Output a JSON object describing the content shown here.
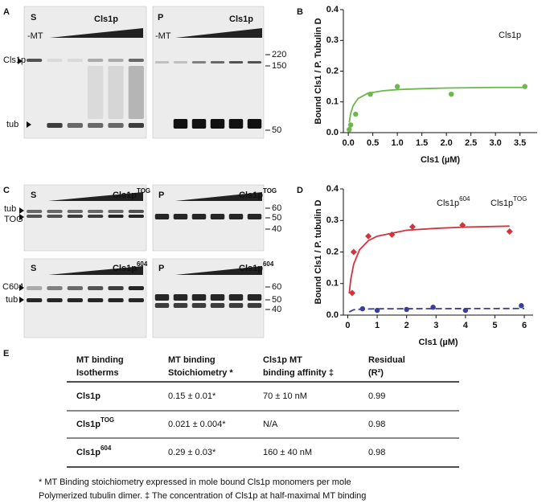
{
  "panel_labels": [
    "A",
    "B",
    "C",
    "D",
    "E"
  ],
  "panel_A": {
    "gels": [
      {
        "label": "S",
        "title": "Cls1p",
        "lane_label": "-MT"
      },
      {
        "label": "P",
        "title": "Cls1p",
        "lane_label": "-MT"
      }
    ],
    "left_labels": [
      "Cls1p",
      "tub"
    ],
    "markers": [
      "220",
      "150",
      "50"
    ]
  },
  "panel_C": {
    "gels": [
      {
        "label": "S",
        "title": "Cls1p",
        "title_sup": "TOG"
      },
      {
        "label": "P",
        "title": "Cls1p",
        "title_sup": "TOG"
      },
      {
        "label": "S",
        "title": "Cls1p",
        "title_sup": "604"
      },
      {
        "label": "P",
        "title": "Cls1p",
        "title_sup": "604"
      }
    ],
    "left_labels_top": [
      "tub",
      "TOG"
    ],
    "left_labels_bottom": [
      "C604",
      "tub"
    ],
    "markers_top": [
      "60",
      "50",
      "40"
    ],
    "markers_bottom": [
      "60",
      "50",
      "40"
    ]
  },
  "chart_data": [
    {
      "type": "scatter",
      "xlabel": "Cls1 (µM)",
      "ylabel": "Bound Cls1  / P. Tubulin D",
      "xlim": [
        -0.1,
        3.85
      ],
      "ylim": [
        0,
        0.4
      ],
      "xticks": [
        {
          "value": 0,
          "label": "0.0"
        },
        0.5,
        {
          "value": 1,
          "label": "1.0"
        },
        1.5,
        {
          "value": 2,
          "label": "2.0"
        },
        2.5,
        {
          "value": 3,
          "label": "3.0"
        },
        3.5
      ],
      "yticks": [
        {
          "value": 0,
          "label": "0.0"
        },
        0.1,
        0.2,
        0.3,
        0.4
      ],
      "series": [
        {
          "name": "Cls1p",
          "color": "#6cb84a",
          "marker": "circle",
          "x": [
            0.02,
            0.05,
            0.15,
            0.45,
            1.0,
            2.1,
            3.6
          ],
          "values": [
            0.01,
            0.025,
            0.06,
            0.125,
            0.15,
            0.125,
            0.15
          ]
        },
        {
          "color": "#6cb84a",
          "style": "solid",
          "x": [
            0.02,
            0.05,
            0.1,
            0.2,
            0.4,
            0.7,
            1.0,
            1.5,
            2.0,
            2.5,
            3.0,
            3.6
          ],
          "values": [
            0.033,
            0.063,
            0.088,
            0.111,
            0.128,
            0.136,
            0.14,
            0.143,
            0.145,
            0.146,
            0.147,
            0.147
          ]
        }
      ]
    },
    {
      "type": "scatter",
      "xlabel": "Cls1 (µM)",
      "ylabel": "Bound Cls1  / P. tubulin D",
      "xlim": [
        -0.15,
        6.3
      ],
      "ylim": [
        0,
        0.4
      ],
      "xticks": [
        0,
        1,
        2,
        3,
        4,
        5,
        6
      ],
      "yticks": [
        {
          "value": 0,
          "label": "0.0"
        },
        0.1,
        0.2,
        0.3,
        0.4
      ],
      "series": [
        {
          "name": "Cls1p",
          "name_sup": "604",
          "color": "#d2343f",
          "marker": "diamond",
          "x": [
            0.15,
            0.2,
            0.7,
            1.5,
            2.2,
            3.9,
            5.5
          ],
          "values": [
            0.07,
            0.2,
            0.25,
            0.255,
            0.28,
            0.285,
            0.265
          ]
        },
        {
          "color": "#d2343f",
          "style": "solid",
          "x": [
            0.05,
            0.1,
            0.2,
            0.4,
            0.7,
            1.0,
            2.0,
            3.0,
            4.0,
            5.5
          ],
          "values": [
            0.069,
            0.112,
            0.161,
            0.207,
            0.236,
            0.25,
            0.269,
            0.275,
            0.279,
            0.282
          ]
        },
        {
          "name": "Cls1p",
          "name_sup": "TOG",
          "color": "#3b3f98",
          "marker": "circle",
          "x": [
            0.5,
            1.0,
            2.0,
            2.9,
            4.0,
            5.9
          ],
          "values": [
            0.02,
            0.015,
            0.018,
            0.025,
            0.015,
            0.03
          ]
        },
        {
          "color": "#3b3f98",
          "style": "dashed",
          "x": [
            0.05,
            0.2,
            0.5,
            1.0,
            6.0
          ],
          "values": [
            0.01,
            0.017,
            0.019,
            0.02,
            0.021
          ]
        }
      ]
    }
  ],
  "table": {
    "headers": [
      [
        "MT binding",
        "Isotherms"
      ],
      [
        "MT binding",
        "Stoichiometry *"
      ],
      [
        "Cls1p MT",
        "binding affinity ‡"
      ],
      [
        "Residual",
        " (R²)"
      ]
    ],
    "rows": [
      [
        {
          "text": "Cls1p"
        },
        "0.15 ±  0.01*",
        "70   ± 10 nM",
        "0.99"
      ],
      [
        {
          "text": "Cls1p",
          "sup": "TOG"
        },
        "0.021 ± 0.004*",
        "N/A",
        "0.98"
      ],
      [
        {
          "text": "Cls1p",
          "sup": "604"
        },
        "0.29 ±  0.03*",
        "160 ± 40 nM",
        "0.98"
      ]
    ]
  },
  "footnote": [
    "* MT Binding stoichiometry expressed in mole bound Cls1p monomers per mole",
    "Polymerized tubulin dimer.  ‡ The concentration of Cls1p at half-maximal MT binding"
  ]
}
